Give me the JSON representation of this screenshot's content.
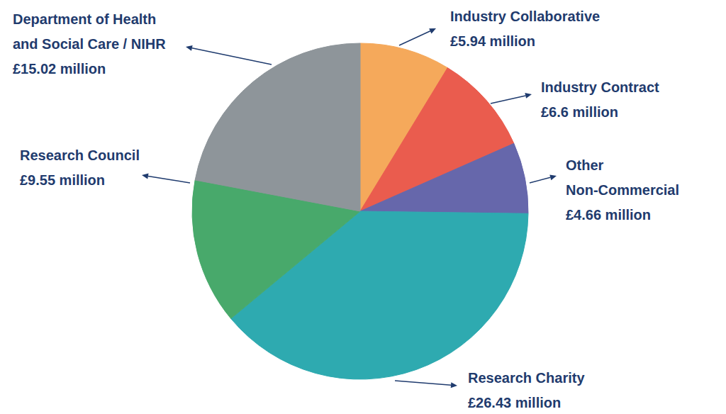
{
  "chart_data": {
    "type": "pie",
    "categories": [
      "Industry Collaborative",
      "Industry Contract",
      "Other Non-Commercial",
      "Research Charity",
      "Research Council",
      "Department of Health and Social Care / NIHR"
    ],
    "values": [
      5.94,
      6.6,
      4.66,
      26.43,
      9.55,
      15.02
    ],
    "value_labels": [
      "£5.94 million",
      "£6.6 million",
      "£4.66 million",
      "£26.43 million",
      "£9.55 million",
      "£15.02 million"
    ],
    "colors": [
      "#F5A95B",
      "#EA5C4E",
      "#6667AB",
      "#2EAAB0",
      "#48A96B",
      "#8E959A"
    ],
    "data_labels": true
  }
}
